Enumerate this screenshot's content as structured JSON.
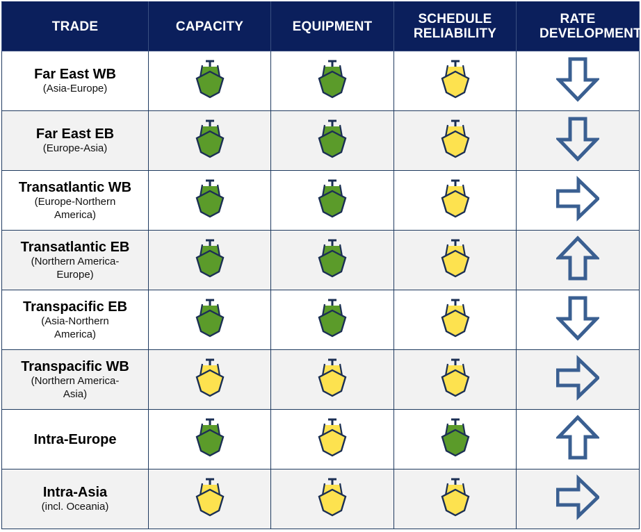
{
  "colors": {
    "header_bg": "#0b1f5c",
    "header_text": "#ffffff",
    "grid_line": "#1f3a5f",
    "row_alt_bg": "#f2f2f2",
    "status_green": "#5b9b2a",
    "status_yellow": "#fde24f",
    "ship_outline": "#1b2f54",
    "arrow_color": "#3a5f91"
  },
  "header": {
    "columns": [
      "TRADE",
      "CAPACITY",
      "EQUIPMENT",
      "SCHEDULE RELIABILITY",
      "RATE DEVELOPMENT"
    ]
  },
  "rows": [
    {
      "trade": "Far East WB",
      "sub": "(Asia-Europe)",
      "capacity": "green",
      "equipment": "green",
      "schedule_reliability": "yellow",
      "rate_development": "down"
    },
    {
      "trade": "Far East EB",
      "sub": "(Europe-Asia)",
      "capacity": "green",
      "equipment": "green",
      "schedule_reliability": "yellow",
      "rate_development": "down"
    },
    {
      "trade": "Transatlantic WB",
      "sub": "(Europe-Northern America)",
      "capacity": "green",
      "equipment": "green",
      "schedule_reliability": "yellow",
      "rate_development": "right"
    },
    {
      "trade": "Transatlantic EB",
      "sub": "(Northern America-Europe)",
      "capacity": "green",
      "equipment": "green",
      "schedule_reliability": "yellow",
      "rate_development": "up"
    },
    {
      "trade": "Transpacific EB",
      "sub": "(Asia-Northern America)",
      "capacity": "green",
      "equipment": "green",
      "schedule_reliability": "yellow",
      "rate_development": "down"
    },
    {
      "trade": "Transpacific WB",
      "sub": "(Northern America-Asia)",
      "capacity": "yellow",
      "equipment": "yellow",
      "schedule_reliability": "yellow",
      "rate_development": "right"
    },
    {
      "trade": "Intra-Europe",
      "sub": "",
      "capacity": "green",
      "equipment": "yellow",
      "schedule_reliability": "green",
      "rate_development": "up"
    },
    {
      "trade": "Intra-Asia",
      "sub": "(incl. Oceania)",
      "capacity": "yellow",
      "equipment": "yellow",
      "schedule_reliability": "yellow",
      "rate_development": "right"
    }
  ],
  "icons": {
    "status": "ship-icon",
    "rate": "outline-arrow-icon"
  }
}
